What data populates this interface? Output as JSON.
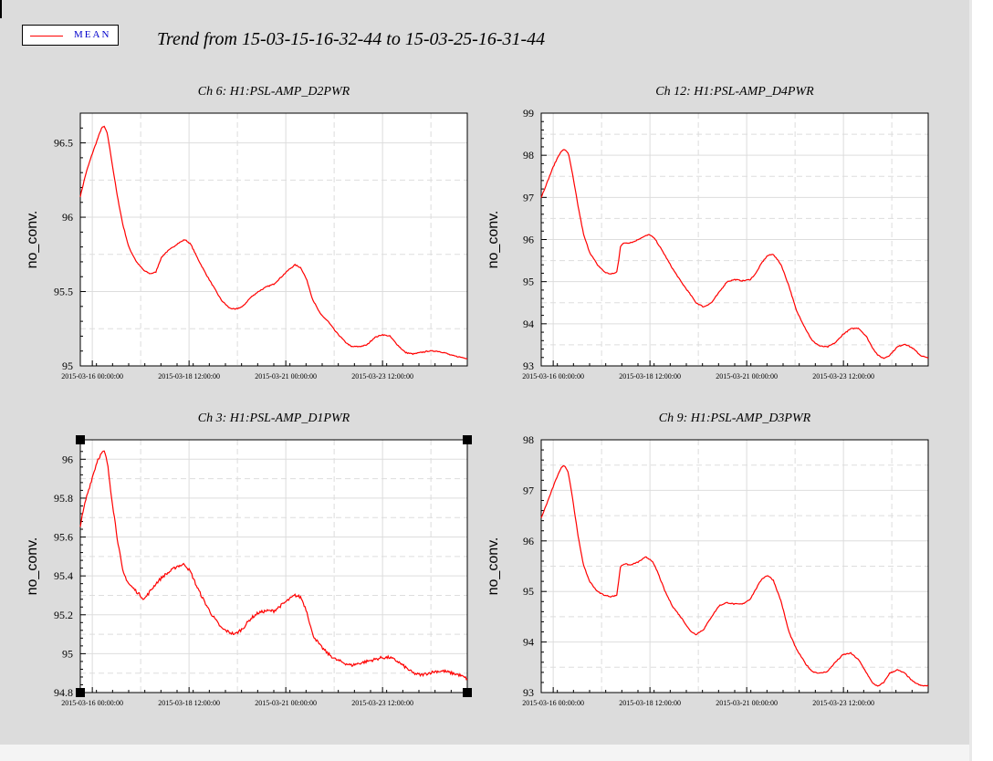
{
  "legend": {
    "label": "MEAN",
    "color": "#ff0000"
  },
  "title": "Trend from 15-03-15-16-32-44 to 15-03-25-16-31-44",
  "chart_data": [
    {
      "type": "line",
      "title": "Ch 6: H1:PSL-AMP_D2PWR",
      "ylabel": "no_conv.",
      "ylim": [
        95,
        96.7
      ],
      "xlim": [
        0,
        10
      ],
      "yticks": [
        95,
        95.5,
        96,
        96.5
      ],
      "ytick_labels": [
        "95",
        "95.5",
        "96",
        "96.5"
      ],
      "x_tick_positions": [
        0.31,
        2.81,
        5.31,
        7.81
      ],
      "x_tick_labels": [
        "2015-03-16 00:00:00",
        "2015-03-18 12:00:00",
        "2015-03-21 00:00:00",
        "2015-03-23 12:00:00"
      ],
      "grid": true,
      "series": [
        {
          "name": "MEAN",
          "color": "#ff0000",
          "x": [
            0,
            0.15,
            0.3,
            0.45,
            0.55,
            0.62,
            0.7,
            0.8,
            0.95,
            1.1,
            1.25,
            1.45,
            1.65,
            1.8,
            1.95,
            2.05,
            2.1,
            2.2,
            2.5,
            2.7,
            2.85,
            3.0,
            3.2,
            3.4,
            3.65,
            3.85,
            4.0,
            4.2,
            4.4,
            4.6,
            4.8,
            5.0,
            5.2,
            5.4,
            5.55,
            5.7,
            5.85,
            6.0,
            6.2,
            6.4,
            6.6,
            6.85,
            7.0,
            7.2,
            7.4,
            7.6,
            7.8,
            8.0,
            8.2,
            8.4,
            8.6,
            8.8,
            9.0,
            9.2,
            9.4,
            9.6,
            9.8,
            10.0
          ],
          "y": [
            96.14,
            96.3,
            96.42,
            96.53,
            96.6,
            96.61,
            96.56,
            96.4,
            96.15,
            95.95,
            95.8,
            95.7,
            95.64,
            95.62,
            95.63,
            95.7,
            95.73,
            95.76,
            95.82,
            95.85,
            95.82,
            95.74,
            95.64,
            95.55,
            95.44,
            95.39,
            95.38,
            95.4,
            95.46,
            95.5,
            95.53,
            95.55,
            95.6,
            95.65,
            95.68,
            95.66,
            95.58,
            95.45,
            95.35,
            95.3,
            95.23,
            95.16,
            95.13,
            95.13,
            95.14,
            95.19,
            95.21,
            95.2,
            95.14,
            95.09,
            95.08,
            95.09,
            95.1,
            95.1,
            95.09,
            95.07,
            95.06,
            95.05
          ]
        }
      ]
    },
    {
      "type": "line",
      "title": "Ch 12: H1:PSL-AMP_D4PWR",
      "ylabel": "no_conv.",
      "ylim": [
        93,
        99
      ],
      "xlim": [
        0,
        10
      ],
      "yticks": [
        93,
        94,
        95,
        96,
        97,
        98,
        99
      ],
      "ytick_labels": [
        "93",
        "94",
        "95",
        "96",
        "97",
        "98",
        "99"
      ],
      "x_tick_positions": [
        0.31,
        2.81,
        5.31,
        7.81
      ],
      "x_tick_labels": [
        "2015-03-16 00:00:00",
        "2015-03-18 12:00:00",
        "2015-03-21 00:00:00",
        "2015-03-23 12:00:00"
      ],
      "grid": true,
      "series": [
        {
          "name": "MEAN",
          "color": "#ff0000",
          "x": [
            0,
            0.15,
            0.3,
            0.45,
            0.55,
            0.62,
            0.7,
            0.8,
            0.95,
            1.1,
            1.25,
            1.45,
            1.65,
            1.8,
            1.95,
            2.0,
            2.05,
            2.15,
            2.25,
            2.4,
            2.6,
            2.8,
            2.95,
            3.15,
            3.4,
            3.65,
            3.85,
            4.0,
            4.2,
            4.4,
            4.6,
            4.8,
            5.0,
            5.2,
            5.4,
            5.55,
            5.7,
            5.85,
            6.0,
            6.2,
            6.4,
            6.6,
            6.85,
            7.0,
            7.2,
            7.4,
            7.6,
            7.8,
            8.0,
            8.2,
            8.4,
            8.55,
            8.7,
            8.85,
            9.0,
            9.2,
            9.4,
            9.6,
            9.8,
            10.0
          ],
          "y": [
            97.0,
            97.35,
            97.7,
            98.0,
            98.12,
            98.13,
            98.05,
            97.6,
            96.8,
            96.1,
            95.7,
            95.4,
            95.22,
            95.18,
            95.22,
            95.5,
            95.85,
            95.92,
            95.92,
            95.95,
            96.05,
            96.12,
            96.0,
            95.7,
            95.3,
            94.95,
            94.7,
            94.5,
            94.4,
            94.5,
            94.75,
            95.0,
            95.05,
            95.02,
            95.05,
            95.2,
            95.45,
            95.62,
            95.65,
            95.4,
            94.9,
            94.3,
            93.85,
            93.6,
            93.47,
            93.45,
            93.55,
            93.75,
            93.88,
            93.9,
            93.7,
            93.45,
            93.25,
            93.18,
            93.25,
            93.45,
            93.52,
            93.42,
            93.25,
            93.18
          ]
        }
      ]
    },
    {
      "type": "line",
      "title": "Ch 3: H1:PSL-AMP_D1PWR",
      "ylabel": "no_conv.",
      "ylim": [
        94.8,
        96.1
      ],
      "xlim": [
        0,
        10
      ],
      "yticks": [
        94.8,
        95,
        95.2,
        95.4,
        95.6,
        95.8,
        96
      ],
      "ytick_labels": [
        "94.8",
        "95",
        "95.2",
        "95.4",
        "95.6",
        "95.8",
        "96"
      ],
      "x_tick_positions": [
        0.31,
        2.81,
        5.31,
        7.81
      ],
      "x_tick_labels": [
        "2015-03-16 00:00:00",
        "2015-03-18 12:00:00",
        "2015-03-21 00:00:00",
        "2015-03-23 12:00:00"
      ],
      "grid": true,
      "series": [
        {
          "name": "MEAN",
          "color": "#ff0000",
          "x": [
            0,
            0.15,
            0.3,
            0.45,
            0.55,
            0.62,
            0.7,
            0.8,
            0.95,
            1.1,
            1.25,
            1.45,
            1.65,
            1.8,
            1.95,
            2.05,
            2.15,
            2.3,
            2.5,
            2.7,
            2.85,
            3.0,
            3.2,
            3.4,
            3.65,
            3.85,
            4.0,
            4.2,
            4.4,
            4.6,
            4.8,
            5.0,
            5.2,
            5.4,
            5.55,
            5.7,
            5.85,
            6.0,
            6.2,
            6.4,
            6.6,
            6.85,
            7.0,
            7.2,
            7.4,
            7.6,
            7.8,
            8.0,
            8.2,
            8.4,
            8.6,
            8.8,
            9.0,
            9.2,
            9.4,
            9.6,
            9.8,
            10.0
          ],
          "y": [
            95.66,
            95.8,
            95.9,
            96.0,
            96.03,
            96.04,
            95.98,
            95.82,
            95.6,
            95.42,
            95.36,
            95.32,
            95.28,
            95.32,
            95.36,
            95.38,
            95.4,
            95.42,
            95.45,
            95.46,
            95.42,
            95.35,
            95.27,
            95.2,
            95.13,
            95.11,
            95.1,
            95.13,
            95.18,
            95.21,
            95.22,
            95.22,
            95.25,
            95.28,
            95.3,
            95.29,
            95.22,
            95.1,
            95.04,
            95.0,
            94.97,
            94.95,
            94.94,
            94.95,
            94.96,
            94.97,
            94.98,
            94.98,
            94.96,
            94.93,
            94.9,
            94.89,
            94.9,
            94.91,
            94.91,
            94.9,
            94.89,
            94.87
          ]
        }
      ]
    },
    {
      "type": "line",
      "title": "Ch 9: H1:PSL-AMP_D3PWR",
      "ylabel": "no_conv.",
      "ylim": [
        93,
        98
      ],
      "xlim": [
        0,
        10
      ],
      "yticks": [
        93,
        94,
        95,
        96,
        97,
        98
      ],
      "ytick_labels": [
        "93",
        "94",
        "95",
        "96",
        "97",
        "98"
      ],
      "x_tick_positions": [
        0.31,
        2.81,
        5.31,
        7.81
      ],
      "x_tick_labels": [
        "2015-03-16 00:00:00",
        "2015-03-18 12:00:00",
        "2015-03-21 00:00:00",
        "2015-03-23 12:00:00"
      ],
      "grid": true,
      "series": [
        {
          "name": "MEAN",
          "color": "#ff0000",
          "x": [
            0,
            0.15,
            0.3,
            0.45,
            0.55,
            0.62,
            0.7,
            0.8,
            0.95,
            1.1,
            1.25,
            1.45,
            1.65,
            1.8,
            1.95,
            2.0,
            2.05,
            2.15,
            2.3,
            2.5,
            2.7,
            2.85,
            3.0,
            3.2,
            3.4,
            3.65,
            3.85,
            4.0,
            4.2,
            4.4,
            4.6,
            4.8,
            5.0,
            5.2,
            5.4,
            5.55,
            5.7,
            5.85,
            6.0,
            6.2,
            6.4,
            6.6,
            6.85,
            7.0,
            7.2,
            7.4,
            7.6,
            7.8,
            8.0,
            8.2,
            8.4,
            8.55,
            8.7,
            8.85,
            9.0,
            9.2,
            9.4,
            9.6,
            9.8,
            10.0
          ],
          "y": [
            96.45,
            96.75,
            97.05,
            97.35,
            97.48,
            97.48,
            97.35,
            96.9,
            96.1,
            95.5,
            95.2,
            95.0,
            94.92,
            94.9,
            94.92,
            95.2,
            95.5,
            95.55,
            95.52,
            95.58,
            95.68,
            95.62,
            95.4,
            95.0,
            94.7,
            94.45,
            94.22,
            94.15,
            94.25,
            94.5,
            94.72,
            94.78,
            94.75,
            94.75,
            94.85,
            95.05,
            95.25,
            95.32,
            95.22,
            94.8,
            94.2,
            93.85,
            93.55,
            93.42,
            93.38,
            93.42,
            93.6,
            93.75,
            93.78,
            93.65,
            93.4,
            93.2,
            93.12,
            93.2,
            93.38,
            93.45,
            93.38,
            93.22,
            93.14,
            93.13
          ]
        }
      ]
    }
  ]
}
